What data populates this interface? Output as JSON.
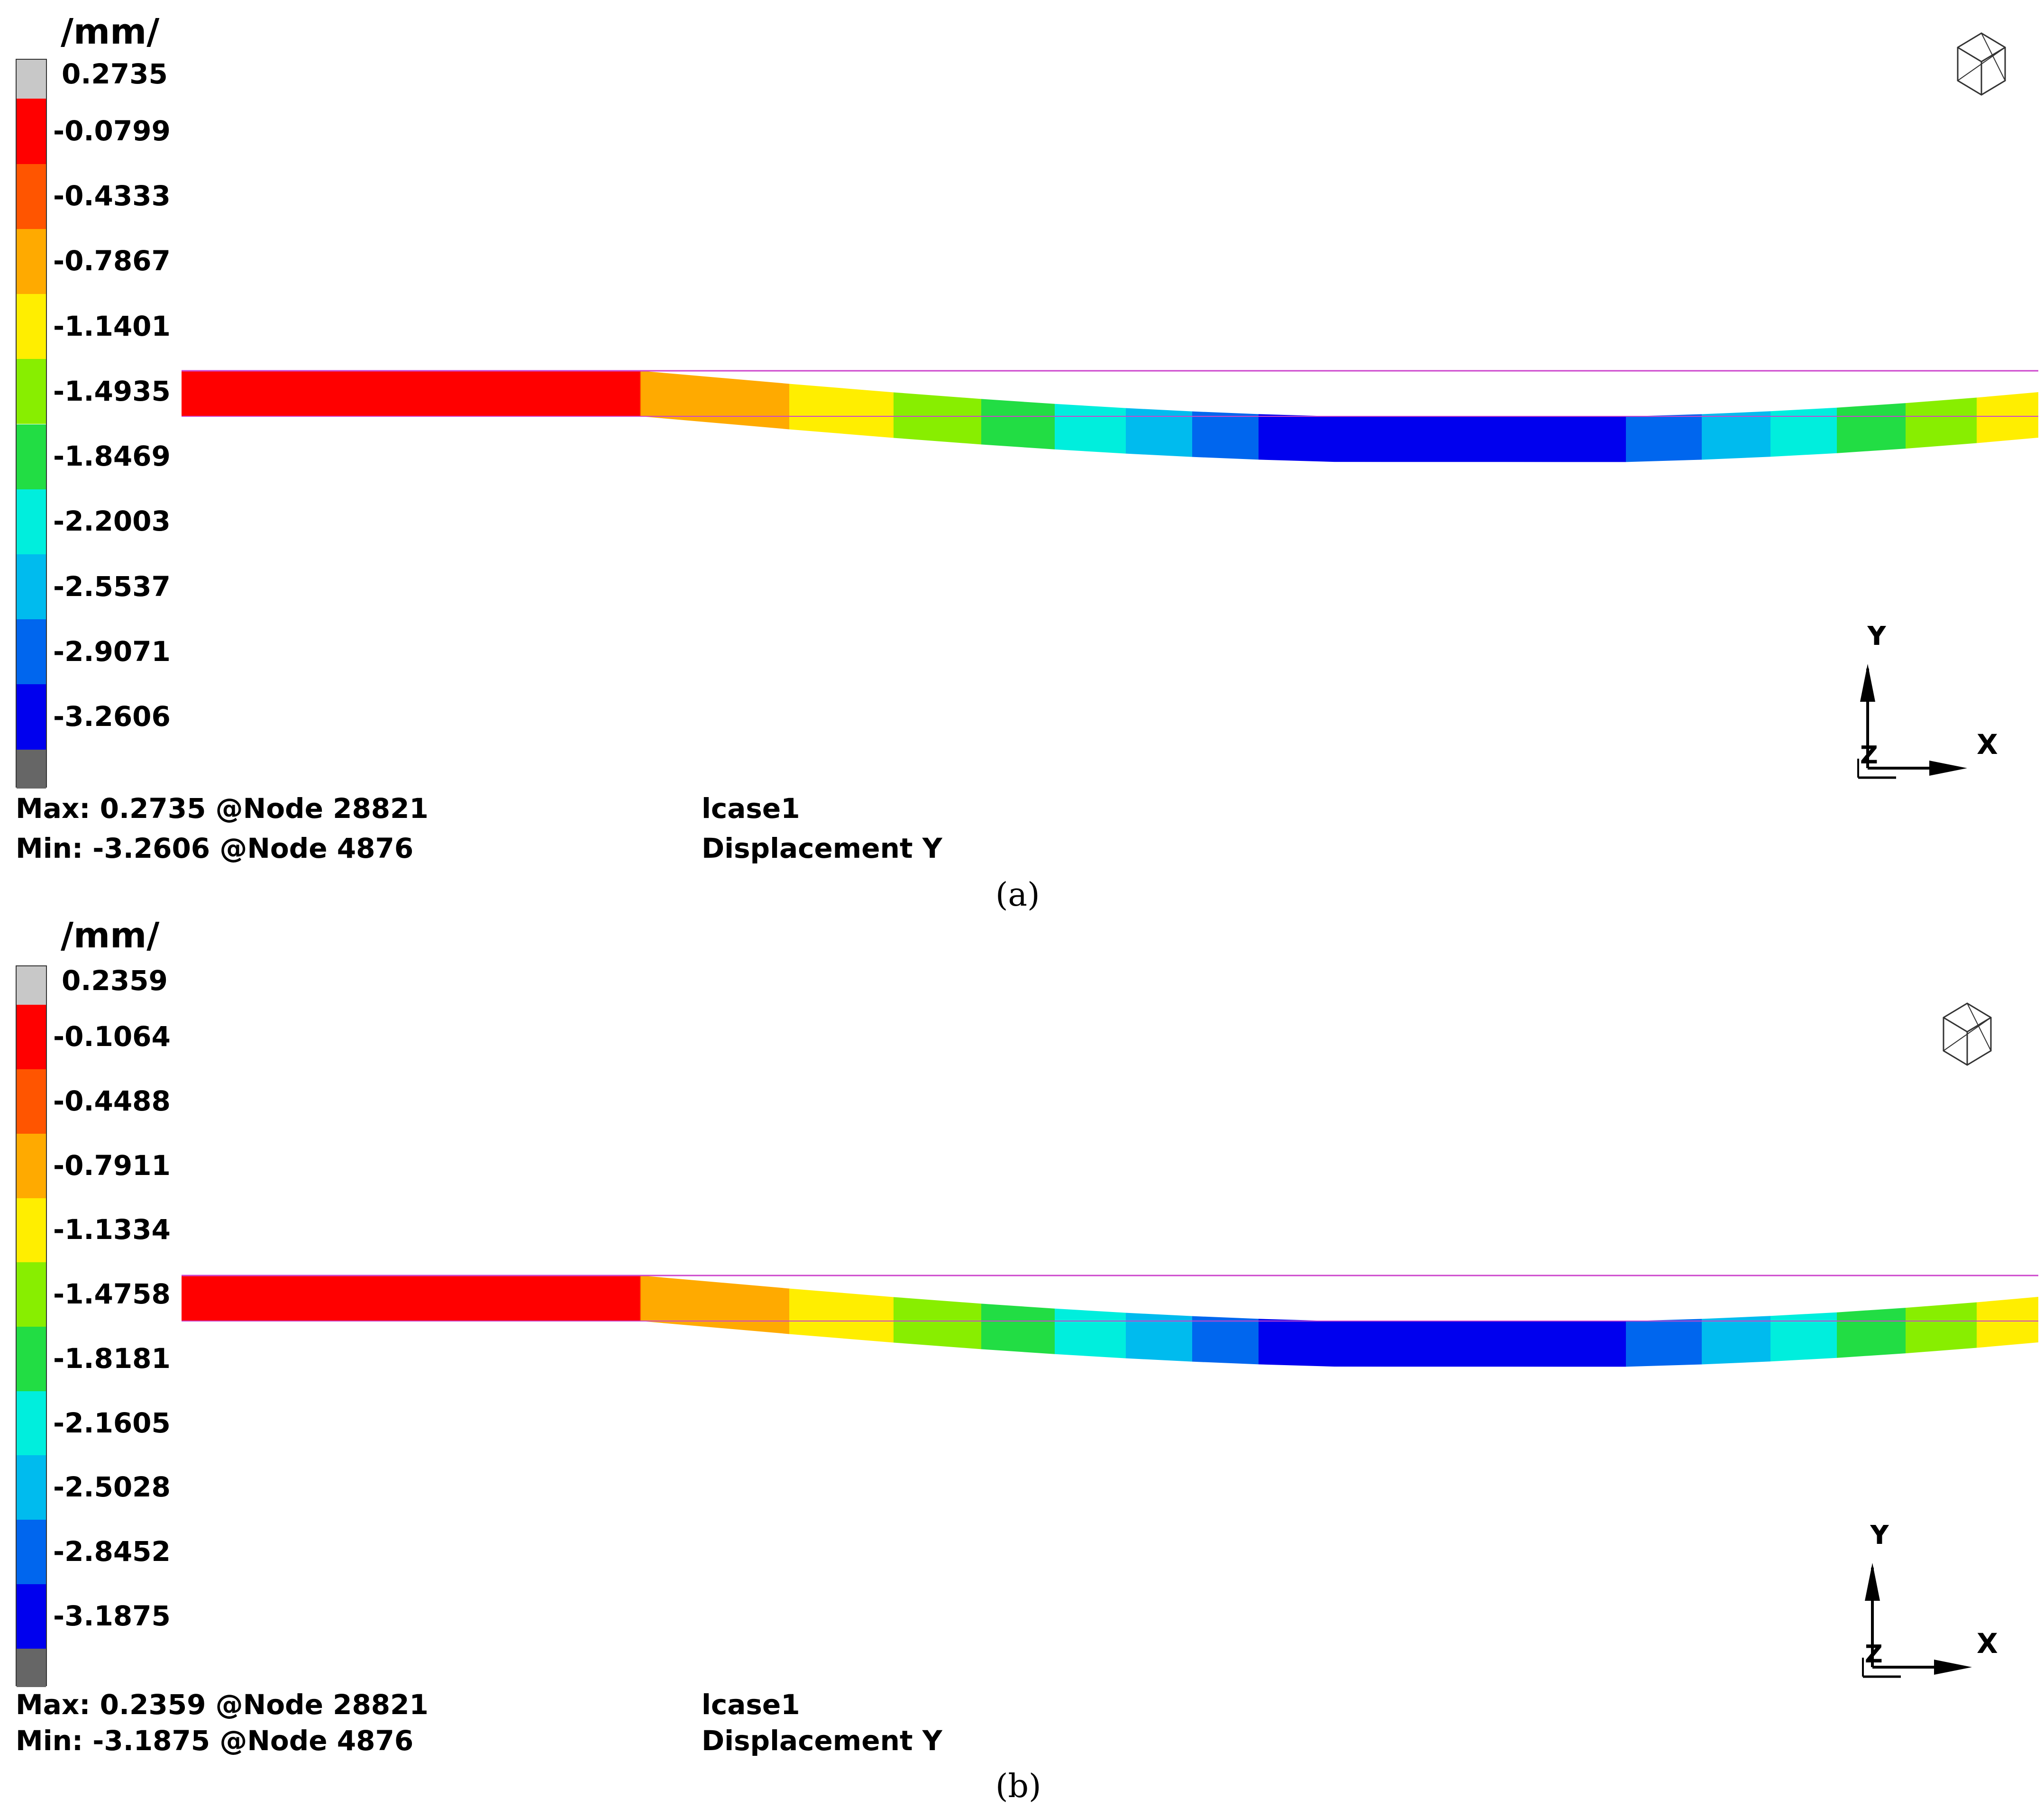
{
  "panels": [
    {
      "caption": "(a)",
      "unit": "/mm/",
      "legend": {
        "labels": [
          "0.2735",
          "-0.0799",
          "-0.4333",
          "-0.7867",
          "-1.1401",
          "-1.4935",
          "-1.8469",
          "-2.2003",
          "-2.5537",
          "-2.9071",
          "-3.2606"
        ],
        "colors": [
          "#c8c8c8",
          "#ff0000",
          "#ff5500",
          "#ffaa00",
          "#ffee00",
          "#88ee00",
          "#22dd44",
          "#00eedd",
          "#00bbee",
          "#0066ee",
          "#0000ee",
          "#666666"
        ]
      },
      "max_line": "Max:  0.2735 @Node  28821",
      "min_line": "Min: -3.2606 @Node  4876",
      "loadcase": "lcase1",
      "result": "Displacement Y",
      "triad": {
        "x": "X",
        "y": "Y",
        "z": "Z"
      }
    },
    {
      "caption": "(b)",
      "unit": "/mm/",
      "legend": {
        "labels": [
          "0.2359",
          "-0.1064",
          "-0.4488",
          "-0.7911",
          "-1.1334",
          "-1.4758",
          "-1.8181",
          "-2.1605",
          "-2.5028",
          "-2.8452",
          "-3.1875"
        ],
        "colors": [
          "#c8c8c8",
          "#ff0000",
          "#ff5500",
          "#ffaa00",
          "#ffee00",
          "#88ee00",
          "#22dd44",
          "#00eedd",
          "#00bbee",
          "#0066ee",
          "#0000ee",
          "#666666"
        ]
      },
      "max_line": "Max:  0.2359 @Node  28821",
      "min_line": "Min: -3.1875 @Node  4876",
      "loadcase": "lcase1",
      "result": "Displacement Y",
      "triad": {
        "x": "X",
        "y": "Y",
        "z": "Z"
      }
    }
  ],
  "beam_segments": [
    "#ff0000",
    "#ff0000",
    "#ff5500",
    "#ffaa00",
    "#ffee00",
    "#88ee00",
    "#22dd44",
    "#00eedd",
    "#00bbee",
    "#0066ee",
    "#0000ee",
    "#0000ee",
    "#0066ee",
    "#00bbee",
    "#00eedd",
    "#22dd44",
    "#88ee00",
    "#ffee00"
  ],
  "icons": {
    "view_cube": "view-cube-icon",
    "triad": "axis-triad-icon"
  }
}
